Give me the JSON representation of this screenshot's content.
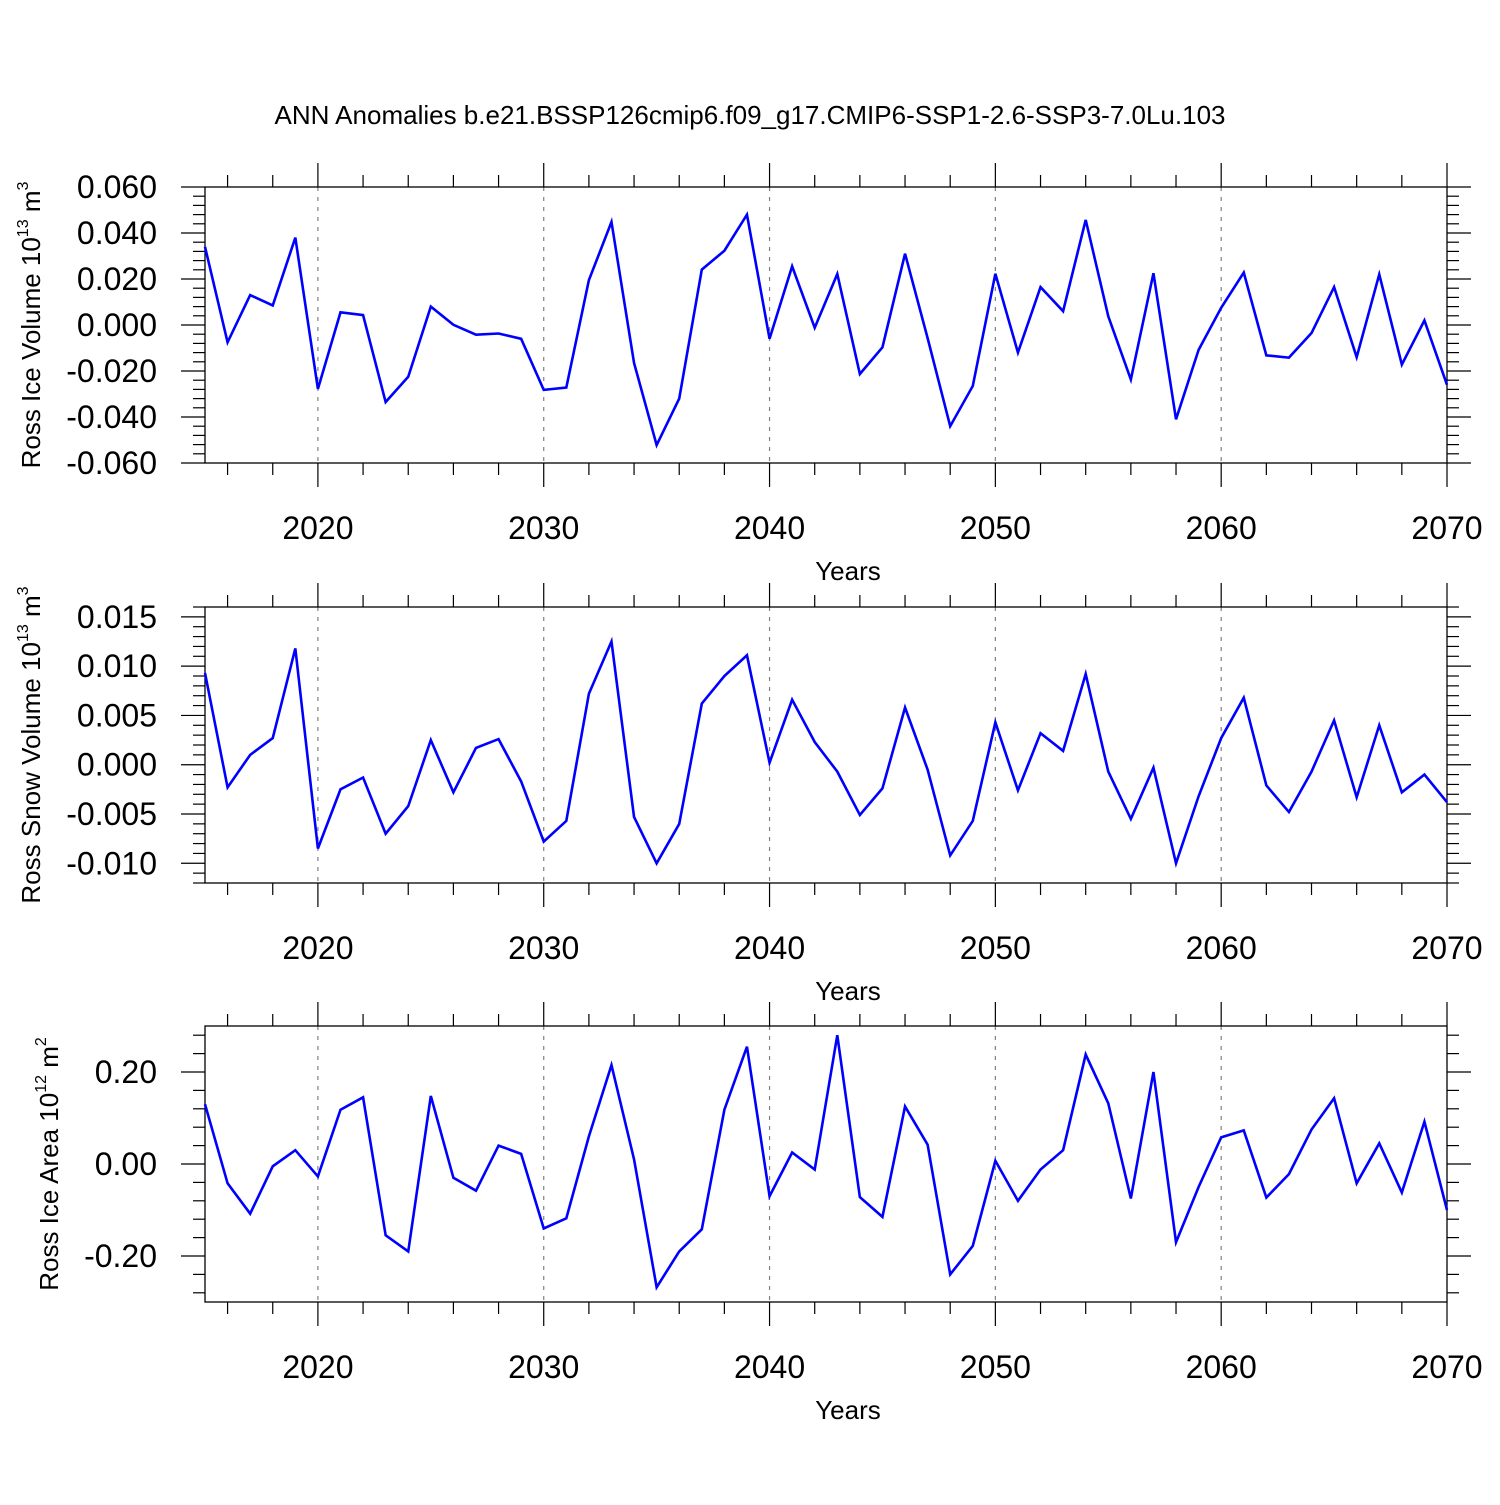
{
  "title": "ANN Anomalies b.e21.BSSP126cmip6.f09_g17.CMIP6-SSP1-2.6-SSP3-7.0Lu.103",
  "colors": {
    "line": "#0000ff",
    "axis": "#000000",
    "grid": "#808080"
  },
  "chart_data": [
    {
      "type": "line",
      "xlabel": "Years",
      "ylabel": {
        "main": "Ross Ice Volume 10",
        "exp": "13",
        "unit": " m",
        "unit_exp": "3"
      },
      "xlim": [
        2015,
        2070
      ],
      "ylim": [
        -0.06,
        0.06
      ],
      "xticks": [
        2020,
        2030,
        2040,
        2050,
        2060,
        2070
      ],
      "xtick_labels": [
        "2020",
        "2030",
        "2040",
        "2050",
        "2060",
        "2070"
      ],
      "yticks": [
        -0.06,
        -0.04,
        -0.02,
        0.0,
        0.02,
        0.04,
        0.06
      ],
      "ytick_labels": [
        "-0.060",
        "-0.040",
        "-0.020",
        "0.000",
        "0.020",
        "0.040",
        "0.060"
      ],
      "grid": "vertical dashed at major x ticks",
      "series": [
        {
          "x": [
            2015,
            2016,
            2017,
            2018,
            2019,
            2020,
            2021,
            2022,
            2023,
            2024,
            2025,
            2026,
            2027,
            2028,
            2029,
            2030,
            2031,
            2032,
            2033,
            2034,
            2035,
            2036,
            2037,
            2038,
            2039,
            2040,
            2041,
            2042,
            2043,
            2044,
            2045,
            2046,
            2047,
            2048,
            2049,
            2050,
            2051,
            2052,
            2053,
            2054,
            2055,
            2056,
            2057,
            2058,
            2059,
            2060,
            2061,
            2062,
            2063,
            2064,
            2065,
            2066,
            2067,
            2068,
            2069,
            2070
          ],
          "values": [
            0.034,
            -0.0075,
            0.013,
            0.0085,
            0.038,
            -0.0278,
            0.0055,
            0.0043,
            -0.0335,
            -0.0225,
            0.008,
            0.0001,
            -0.0042,
            -0.0037,
            -0.006,
            -0.0282,
            -0.0272,
            0.0195,
            0.0448,
            -0.0165,
            -0.0522,
            -0.032,
            0.0241,
            0.0323,
            0.048,
            -0.006,
            0.0255,
            -0.0012,
            0.0222,
            -0.0213,
            -0.0097,
            0.031,
            -0.0057,
            -0.044,
            -0.0265,
            0.0223,
            -0.012,
            0.0165,
            0.006,
            0.0457,
            0.0038,
            -0.0237,
            0.0225,
            -0.041,
            -0.0108,
            0.0075,
            0.0228,
            -0.0132,
            -0.0142,
            -0.0035,
            0.0165,
            -0.014,
            0.022,
            -0.0172,
            0.002,
            -0.026
          ]
        }
      ]
    },
    {
      "type": "line",
      "xlabel": "Years",
      "ylabel": {
        "main": "Ross Snow Volume 10",
        "exp": "13",
        "unit": " m",
        "unit_exp": "3"
      },
      "xlim": [
        2015,
        2070
      ],
      "ylim": [
        -0.012,
        0.016
      ],
      "xticks": [
        2020,
        2030,
        2040,
        2050,
        2060,
        2070
      ],
      "xtick_labels": [
        "2020",
        "2030",
        "2040",
        "2050",
        "2060",
        "2070"
      ],
      "yticks": [
        -0.01,
        -0.005,
        0.0,
        0.005,
        0.01,
        0.015
      ],
      "ytick_labels": [
        "-0.010",
        "-0.005",
        "0.000",
        "0.005",
        "0.010",
        "0.015"
      ],
      "grid": "vertical dashed at major x ticks",
      "series": [
        {
          "x": [
            2015,
            2016,
            2017,
            2018,
            2019,
            2020,
            2021,
            2022,
            2023,
            2024,
            2025,
            2026,
            2027,
            2028,
            2029,
            2030,
            2031,
            2032,
            2033,
            2034,
            2035,
            2036,
            2037,
            2038,
            2039,
            2040,
            2041,
            2042,
            2043,
            2044,
            2045,
            2046,
            2047,
            2048,
            2049,
            2050,
            2051,
            2052,
            2053,
            2054,
            2055,
            2056,
            2057,
            2058,
            2059,
            2060,
            2061,
            2062,
            2063,
            2064,
            2065,
            2066,
            2067,
            2068,
            2069,
            2070
          ],
          "values": [
            0.0093,
            -0.0023,
            0.001,
            0.0027,
            0.0118,
            -0.0085,
            -0.0025,
            -0.0013,
            -0.007,
            -0.0042,
            0.0025,
            -0.0028,
            0.0017,
            0.0026,
            -0.0017,
            -0.0078,
            -0.0057,
            0.0072,
            0.0125,
            -0.0053,
            -0.01,
            -0.006,
            0.0062,
            0.009,
            0.0111,
            0.0002,
            0.0066,
            0.0023,
            -0.0007,
            -0.0051,
            -0.0024,
            0.0058,
            -0.0005,
            -0.0092,
            -0.0057,
            0.0043,
            -0.0026,
            0.0032,
            0.0014,
            0.0092,
            -0.0007,
            -0.0055,
            -0.0003,
            -0.01,
            -0.0032,
            0.0027,
            0.0068,
            -0.0021,
            -0.0048,
            -0.0007,
            0.0045,
            -0.0033,
            0.004,
            -0.0028,
            -0.001,
            -0.0038
          ]
        }
      ]
    },
    {
      "type": "line",
      "xlabel": "Years",
      "ylabel": {
        "main": "Ross Ice Area 10",
        "exp": "12",
        "unit": " m",
        "unit_exp": "2"
      },
      "xlim": [
        2015,
        2070
      ],
      "ylim": [
        -0.3,
        0.3
      ],
      "xticks": [
        2020,
        2030,
        2040,
        2050,
        2060,
        2070
      ],
      "xtick_labels": [
        "2020",
        "2030",
        "2040",
        "2050",
        "2060",
        "2070"
      ],
      "yticks": [
        -0.2,
        0.0,
        0.2
      ],
      "ytick_labels": [
        "-0.20",
        "0.00",
        "0.20"
      ],
      "grid": "vertical dashed at major x ticks",
      "series": [
        {
          "x": [
            2015,
            2016,
            2017,
            2018,
            2019,
            2020,
            2021,
            2022,
            2023,
            2024,
            2025,
            2026,
            2027,
            2028,
            2029,
            2030,
            2031,
            2032,
            2033,
            2034,
            2035,
            2036,
            2037,
            2038,
            2039,
            2040,
            2041,
            2042,
            2043,
            2044,
            2045,
            2046,
            2047,
            2048,
            2049,
            2050,
            2051,
            2052,
            2053,
            2054,
            2055,
            2056,
            2057,
            2058,
            2059,
            2060,
            2061,
            2062,
            2063,
            2064,
            2065,
            2066,
            2067,
            2068,
            2069,
            2070
          ],
          "values": [
            0.13,
            -0.042,
            -0.108,
            -0.005,
            0.03,
            -0.027,
            0.118,
            0.145,
            -0.155,
            -0.19,
            0.148,
            -0.03,
            -0.058,
            0.04,
            0.022,
            -0.14,
            -0.118,
            0.06,
            0.215,
            0.01,
            -0.268,
            -0.19,
            -0.142,
            0.118,
            0.255,
            -0.07,
            0.025,
            -0.012,
            0.28,
            -0.072,
            -0.115,
            0.125,
            0.042,
            -0.24,
            -0.178,
            0.007,
            -0.08,
            -0.012,
            0.03,
            0.238,
            0.132,
            -0.075,
            0.2,
            -0.17,
            -0.05,
            0.058,
            0.073,
            -0.073,
            -0.022,
            0.075,
            0.143,
            -0.042,
            0.045,
            -0.062,
            0.092,
            -0.1
          ]
        }
      ]
    }
  ]
}
